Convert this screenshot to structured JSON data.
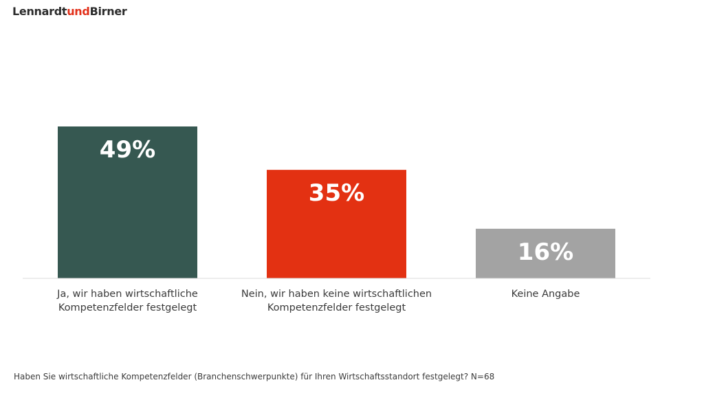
{
  "brand": {
    "logo_part1": "Lennardt",
    "logo_part2": "und",
    "logo_part3": "Birner",
    "accent_color": "#e2301a"
  },
  "chart_data": {
    "type": "bar",
    "categories": [
      "Ja, wir haben wirtschaftliche Kompetenzfelder festgelegt",
      "Nein, wir haben keine wirtschaftlichen Kompetenzfelder festgelegt",
      "Keine Angabe"
    ],
    "category_lines": [
      [
        "Ja, wir haben wirtschaftliche",
        "Kompetenzfelder festgelegt"
      ],
      [
        "Nein, wir haben keine wirtschaftlichen",
        "Kompetenzfelder festgelegt"
      ],
      [
        "Keine Angabe"
      ]
    ],
    "values": [
      49,
      35,
      16
    ],
    "value_labels": [
      "49%",
      "35%",
      "16%"
    ],
    "colors": [
      "#365851",
      "#e33112",
      "#a3a3a3"
    ],
    "unit": "%",
    "ylim": [
      0,
      49
    ],
    "grid": false,
    "legend": "none"
  },
  "footnote": "Haben Sie wirtschaftliche Kompetenzfelder (Branchenschwerpunkte) für Ihren Wirtschaftsstandort festgelegt? N=68"
}
